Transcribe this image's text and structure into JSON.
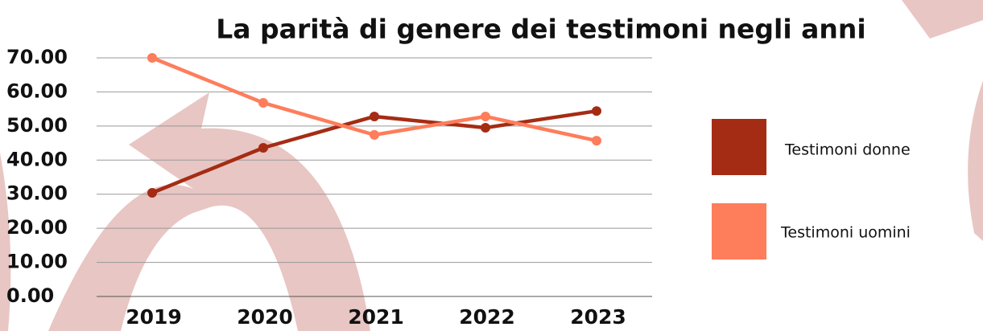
{
  "chart_data": {
    "type": "line",
    "title": "La parità di genere dei testimoni negli anni",
    "categories": [
      "2019",
      "2020",
      "2021",
      "2022",
      "2023"
    ],
    "series": [
      {
        "name": "Testimoni donne",
        "color": "#a52c14",
        "values": [
          30.4,
          43.6,
          52.8,
          49.5,
          54.4
        ]
      },
      {
        "name": "Testimoni uomini",
        "color": "#fe7d5b",
        "values": [
          70,
          56.8,
          47.4,
          52.8,
          45.7
        ]
      }
    ],
    "ylim": [
      0,
      70
    ],
    "yticks": [
      {
        "value": 0,
        "label": "0.00"
      },
      {
        "value": 10,
        "label": "10.00"
      },
      {
        "value": 20,
        "label": "20.00"
      },
      {
        "value": 30,
        "label": "30.00"
      },
      {
        "value": 40,
        "label": "40.00"
      },
      {
        "value": 50,
        "label": "50.00"
      },
      {
        "value": 60,
        "label": "60.00"
      },
      {
        "value": 70,
        "label": "70.00"
      }
    ],
    "grid": true
  }
}
